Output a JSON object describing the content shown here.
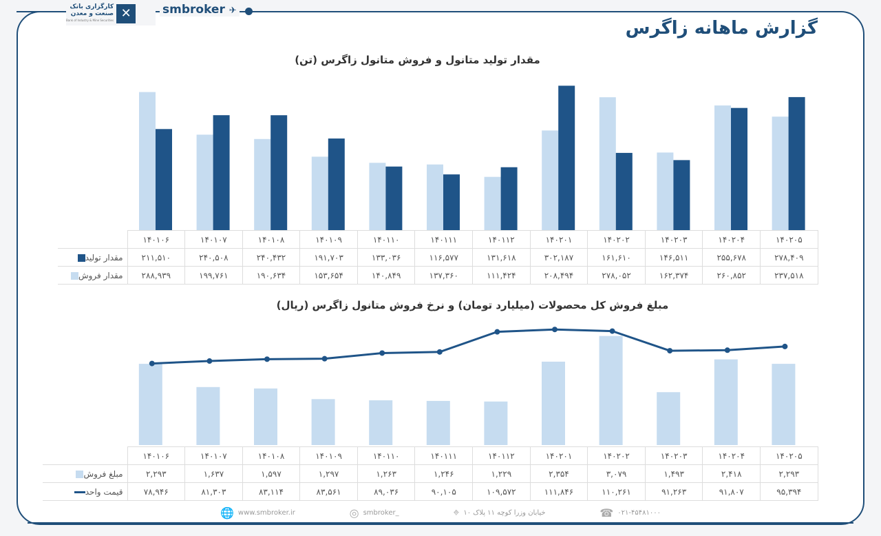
{
  "header": {
    "brand": "smbroker",
    "logo_line1": "کارگزاری بانک",
    "logo_line2": "صنعت و معدن",
    "logo_sub": "Bank of Industry & Mine Securities",
    "title": "گزارش ماهانه زاگرس"
  },
  "colors": {
    "dark": "#1f5488",
    "light": "#c6dcf0",
    "frame": "#1f4e79"
  },
  "chart_data": [
    {
      "type": "bar",
      "title": "مقدار تولید متانول و فروش متانول زاگرس (تن)",
      "categories": [
        "۱۴۰۱۰۶",
        "۱۴۰۱۰۷",
        "۱۴۰۱۰۸",
        "۱۴۰۱۰۹",
        "۱۴۰۱۱۰",
        "۱۴۰۱۱۱",
        "۱۴۰۱۱۲",
        "۱۴۰۲۰۱",
        "۱۴۰۲۰۲",
        "۱۴۰۲۰۳",
        "۱۴۰۲۰۴",
        "۱۴۰۲۰۵"
      ],
      "series": [
        {
          "name": "مقدار تولید",
          "color": "#1f5488",
          "values": [
            211510,
            240508,
            240432,
            191703,
            133036,
            116577,
            131618,
            302187,
            161610,
            146511,
            255678,
            278409
          ],
          "labels": [
            "۲۱۱,۵۱۰",
            "۲۴۰,۵۰۸",
            "۲۴۰,۴۳۲",
            "۱۹۱,۷۰۳",
            "۱۳۳,۰۳۶",
            "۱۱۶,۵۷۷",
            "۱۳۱,۶۱۸",
            "۳۰۲,۱۸۷",
            "۱۶۱,۶۱۰",
            "۱۴۶,۵۱۱",
            "۲۵۵,۶۷۸",
            "۲۷۸,۴۰۹"
          ]
        },
        {
          "name": "مقدار فروش",
          "color": "#c6dcf0",
          "values": [
            288939,
            199761,
            190634,
            153654,
            140849,
            137360,
            111424,
            208494,
            278052,
            162374,
            260852,
            237518
          ],
          "labels": [
            "۲۸۸,۹۳۹",
            "۱۹۹,۷۶۱",
            "۱۹۰,۶۳۴",
            "۱۵۳,۶۵۴",
            "۱۴۰,۸۴۹",
            "۱۳۷,۳۶۰",
            "۱۱۱,۴۲۴",
            "۲۰۸,۴۹۴",
            "۲۷۸,۰۵۲",
            "۱۶۲,۳۷۴",
            "۲۶۰,۸۵۲",
            "۲۳۷,۵۱۸"
          ]
        }
      ],
      "ylim": [
        0,
        310000
      ],
      "grid": false,
      "legend": "table-left"
    },
    {
      "type": "bar+line",
      "title": "مبلغ فروش کل محصولات (میلیارد تومان) و نرخ فروش متانول زاگرس (ریال)",
      "categories": [
        "۱۴۰۱۰۶",
        "۱۴۰۱۰۷",
        "۱۴۰۱۰۸",
        "۱۴۰۱۰۹",
        "۱۴۰۱۱۰",
        "۱۴۰۱۱۱",
        "۱۴۰۱۱۲",
        "۱۴۰۲۰۱",
        "۱۴۰۲۰۲",
        "۱۴۰۲۰۳",
        "۱۴۰۲۰۴",
        "۱۴۰۲۰۵"
      ],
      "series": [
        {
          "name": "مبلغ فروش",
          "type": "bar",
          "color": "#c6dcf0",
          "values": [
            2293,
            1637,
            1597,
            1297,
            1263,
            1246,
            1229,
            2354,
            3079,
            1493,
            2418,
            2293
          ],
          "labels": [
            "۲,۲۹۳",
            "۱,۶۳۷",
            "۱,۵۹۷",
            "۱,۲۹۷",
            "۱,۲۶۳",
            "۱,۲۴۶",
            "۱,۲۲۹",
            "۲,۳۵۴",
            "۳,۰۷۹",
            "۱,۴۹۳",
            "۲,۴۱۸",
            "۲,۲۹۳"
          ]
        },
        {
          "name": "قیمت واحد",
          "type": "line",
          "color": "#1f5488",
          "values": [
            78946,
            81303,
            83114,
            83561,
            89036,
            90105,
            109572,
            111846,
            110261,
            91263,
            91807,
            95394
          ],
          "labels": [
            "۷۸,۹۴۶",
            "۸۱,۳۰۳",
            "۸۳,۱۱۴",
            "۸۳,۵۶۱",
            "۸۹,۰۳۶",
            "۹۰,۱۰۵",
            "۱۰۹,۵۷۲",
            "۱۱۱,۸۴۶",
            "۱۱۰,۲۶۱",
            "۹۱,۲۶۳",
            "۹۱,۸۰۷",
            "۹۵,۳۹۴"
          ]
        }
      ],
      "ylim_bar": [
        0,
        3500
      ],
      "ylim_line": [
        0,
        120000
      ],
      "grid": false,
      "legend": "table-left"
    }
  ],
  "footer": {
    "website": "www.smbroker.ir",
    "instagram": "smbroker_",
    "address": "خیابان وزرا کوچه ۱۱ پلاک ۱۰",
    "phone": "۰۲۱-۴۵۴۸۱۰۰۰"
  }
}
